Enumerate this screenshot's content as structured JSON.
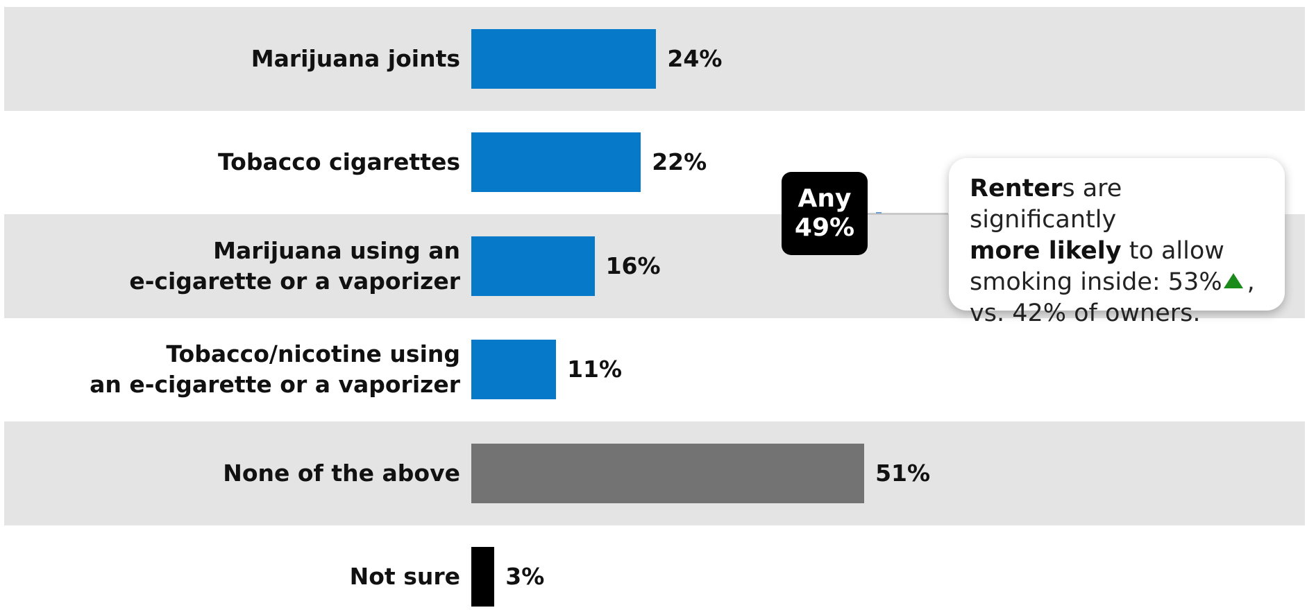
{
  "chart_data": {
    "type": "bar",
    "orientation": "horizontal",
    "categories": [
      [
        "Marijuana joints"
      ],
      [
        "Tobacco cigarettes"
      ],
      [
        "Marijuana using an",
        "e-cigarette or a vaporizer"
      ],
      [
        "Tobacco/nicotine using",
        "an e-cigarette or a vaporizer"
      ],
      [
        "None of the above"
      ],
      [
        "Not sure"
      ]
    ],
    "values": [
      24,
      22,
      16,
      11,
      51,
      3
    ],
    "value_labels": [
      "24%",
      "22%",
      "16%",
      "11%",
      "51%",
      "3%"
    ],
    "bar_colors": [
      "#0679c8",
      "#0679c8",
      "#0679c8",
      "#0679c8",
      "#737373",
      "#000000"
    ],
    "banded_rows": true,
    "band_color": "#e4e4e4",
    "xlim": [
      0,
      100
    ],
    "grid": false,
    "legend": "none"
  },
  "any_badge": {
    "line1": "Any",
    "line2": "49%"
  },
  "callout": {
    "strong1": "Rente",
    "strong1b": "r",
    "text1": "s are significantly",
    "strong2": "more likely",
    "text2": " to allow",
    "text3": "smoking inside: 53%",
    "icon": "up-triangle-icon",
    "text4": ",",
    "text5": "vs. 42% of owners."
  },
  "colors": {
    "accent_blue": "#0679c8",
    "gray": "#737373",
    "up_green": "#1a8a1a"
  }
}
